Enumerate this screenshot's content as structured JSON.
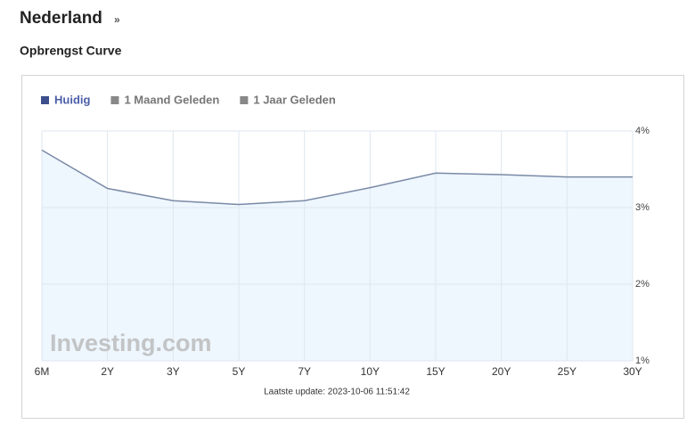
{
  "heading": "Nederland",
  "heading_link": "»",
  "chart_data": {
    "type": "area",
    "title": "Opbrengst Curve",
    "categories": [
      "6M",
      "2Y",
      "3Y",
      "5Y",
      "7Y",
      "10Y",
      "15Y",
      "20Y",
      "25Y",
      "30Y"
    ],
    "series": [
      {
        "name": "Huidig",
        "color": "#3c4f8c",
        "line_color": "#7a8aa6",
        "fill": "#eef6fe",
        "values": [
          3.75,
          3.25,
          3.09,
          3.04,
          3.09,
          3.26,
          3.45,
          3.43,
          3.4,
          3.4
        ]
      },
      {
        "name": "1 Maand Geleden",
        "color": "#888888",
        "values": [
          null,
          null,
          null,
          null,
          null,
          null,
          null,
          null,
          null,
          null
        ]
      },
      {
        "name": "1 Jaar Geleden",
        "color": "#888888",
        "values": [
          null,
          null,
          null,
          null,
          null,
          null,
          null,
          null,
          null,
          null
        ]
      }
    ],
    "ylim": [
      1,
      4
    ],
    "yticks": [
      {
        "value": 1,
        "label": "1%"
      },
      {
        "value": 2,
        "label": "2%"
      },
      {
        "value": 3,
        "label": "3%"
      },
      {
        "value": 4,
        "label": "4%"
      }
    ],
    "grid": true,
    "legend": "top-left",
    "watermark": "Investing.com",
    "footer": "Laatste update: 2023-10-06 11:51:42"
  }
}
